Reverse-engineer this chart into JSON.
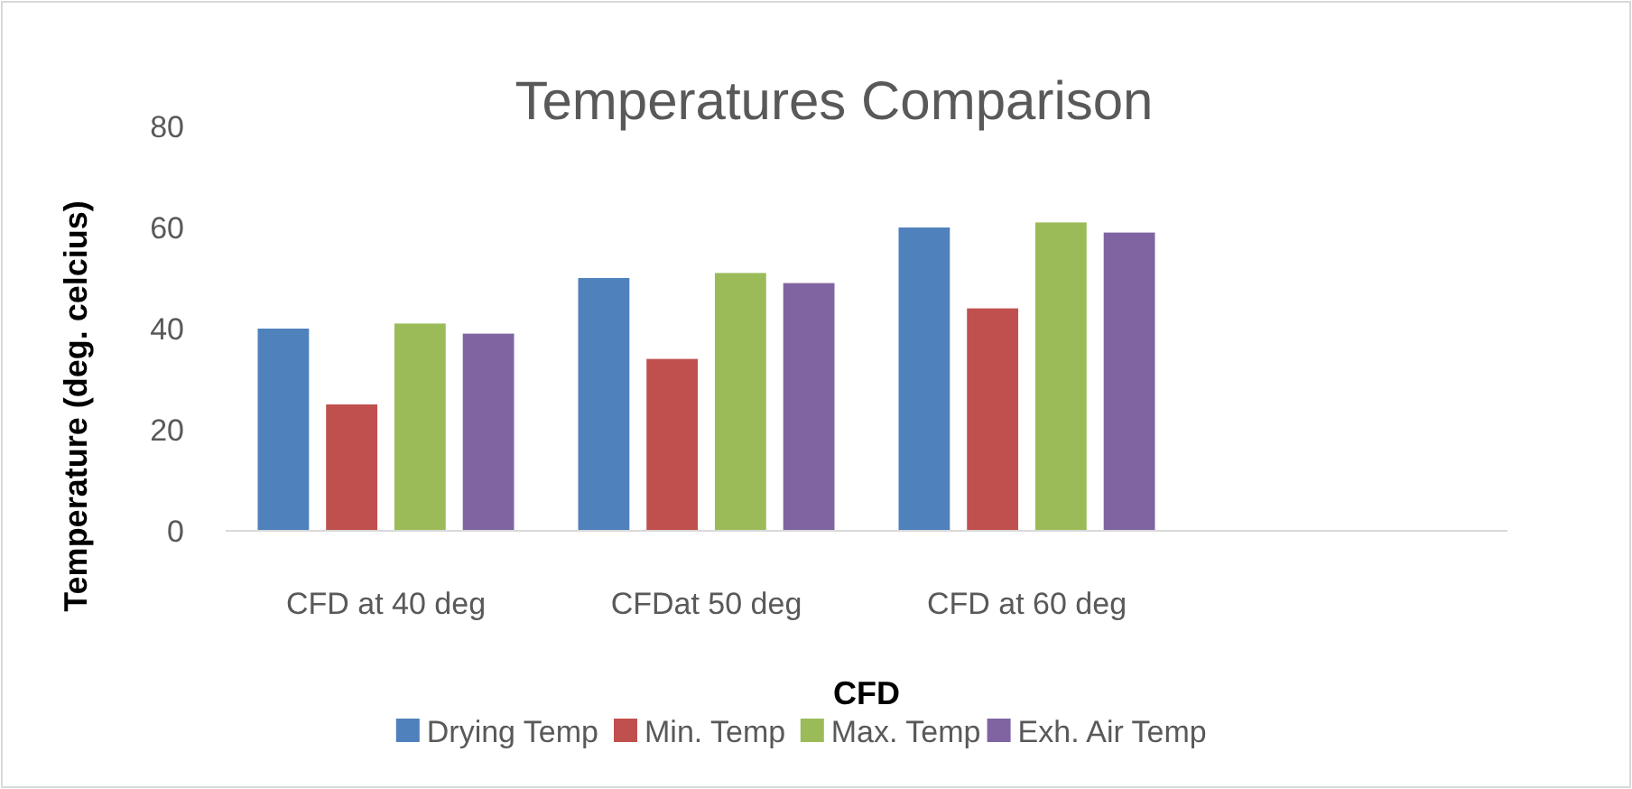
{
  "chart_data": {
    "type": "bar",
    "title": "Temperatures Comparison",
    "xlabel": "CFD",
    "ylabel": "Temperature (deg. celcius)",
    "categories": [
      "CFD at 40 deg",
      "CFDat 50 deg",
      "CFD at 60 deg",
      null
    ],
    "series": [
      {
        "name": "Drying Temp",
        "color": "#4f81bd",
        "values": [
          40,
          50,
          60,
          null
        ]
      },
      {
        "name": "Min. Temp",
        "color": "#c0504d",
        "values": [
          25,
          34,
          44,
          null
        ]
      },
      {
        "name": "Max. Temp",
        "color": "#9bbb59",
        "values": [
          41,
          51,
          61,
          null
        ]
      },
      {
        "name": "Exh. Air Temp",
        "color": "#8064a2",
        "values": [
          39,
          49,
          59,
          null
        ]
      }
    ],
    "ylim": [
      0,
      80
    ],
    "yticks": [
      0,
      20,
      40,
      60,
      80
    ],
    "grid": false,
    "legend": "bottom"
  }
}
